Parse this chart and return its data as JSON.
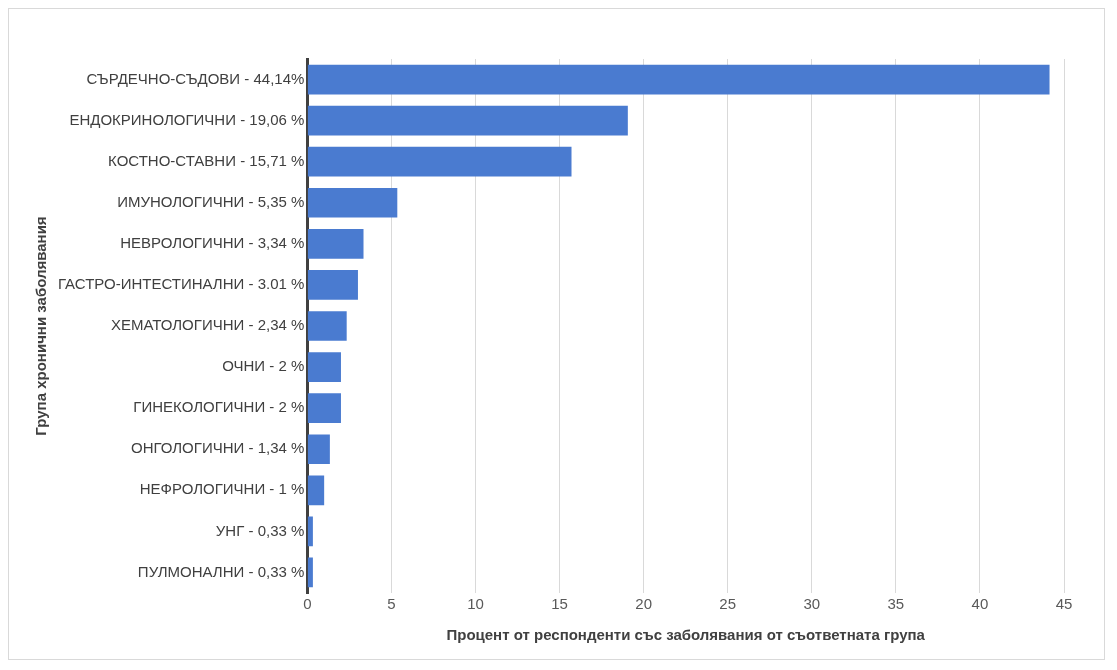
{
  "chart_data": {
    "type": "bar",
    "orientation": "horizontal",
    "xlabel": "Процент от респонденти със заболявания от съответната група",
    "ylabel": "Група хронични заболявания",
    "categories": [
      "СЪРДЕЧНО-СЪДОВИ - 44,14%",
      "ЕНДОКРИНОЛОГИЧНИ - 19,06 %",
      "КОСТНО-СТАВНИ - 15,71 %",
      "ИМУНОЛОГИЧНИ - 5,35 %",
      "НЕВРОЛОГИЧНИ - 3,34 %",
      "ГАСТРО-ИНТЕСТИНАЛНИ - 3.01 %",
      "ХЕМАТОЛОГИЧНИ - 2,34 %",
      "ОЧНИ - 2 %",
      "ГИНЕКОЛОГИЧНИ - 2 %",
      "ОНГОЛОГИЧНИ - 1,34 %",
      "НЕФРОЛОГИЧНИ - 1 %",
      "УНГ - 0,33 %",
      "ПУЛМОНАЛНИ - 0,33 %"
    ],
    "values": [
      44.14,
      19.06,
      15.71,
      5.35,
      3.34,
      3.01,
      2.34,
      2,
      2,
      1.34,
      1,
      0.33,
      0.33
    ],
    "color": "#4a7bd0",
    "xlim": [
      0,
      45
    ],
    "xticks": [
      0,
      5,
      10,
      15,
      20,
      25,
      30,
      35,
      40,
      45
    ],
    "grid": "x",
    "legend": false
  }
}
